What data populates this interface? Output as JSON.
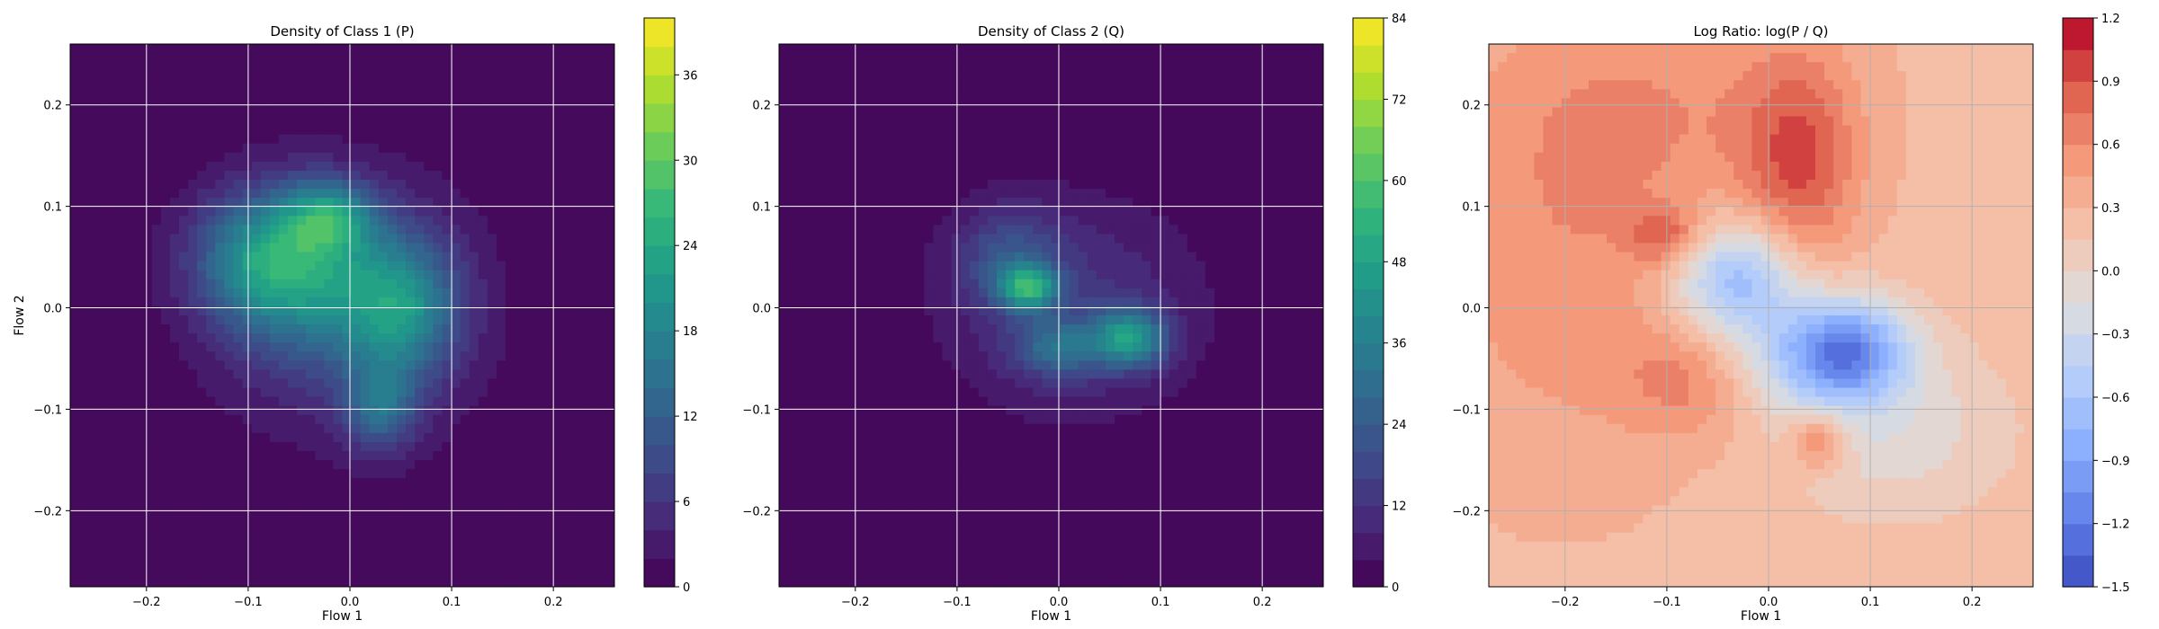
{
  "chart_data": [
    {
      "type": "heatmap",
      "title": "Density of Class 1 (P)",
      "xlabel": "Flow 1",
      "ylabel": "Flow 2",
      "xlim": [
        -0.275,
        0.26
      ],
      "ylim": [
        -0.275,
        0.26
      ],
      "x_ticks": [
        -0.2,
        -0.1,
        0.0,
        0.1,
        0.2
      ],
      "x_tick_labels": [
        "−0.2",
        "−0.1",
        "0.0",
        "0.1",
        "0.2"
      ],
      "y_ticks": [
        -0.2,
        -0.1,
        0.0,
        0.1,
        0.2
      ],
      "y_tick_labels": [
        "−0.2",
        "−0.1",
        "0.0",
        "0.1",
        "0.2"
      ],
      "grid": true,
      "grid_color": "#ffffff",
      "colormap": "viridis",
      "colorbar": {
        "min": 0,
        "max": 40,
        "ticks": [
          0,
          6,
          12,
          18,
          24,
          30,
          36
        ],
        "tick_labels": [
          "0",
          "6",
          "12",
          "18",
          "24",
          "30",
          "36"
        ],
        "levels": 20
      },
      "density_blobs": [
        {
          "x": -0.08,
          "y": 0.05,
          "sx": 0.05,
          "sy": 0.045,
          "v": 16
        },
        {
          "x": -0.02,
          "y": 0.09,
          "sx": 0.03,
          "sy": 0.025,
          "v": 14
        },
        {
          "x": 0.05,
          "y": 0.0,
          "sx": 0.04,
          "sy": 0.05,
          "v": 16
        },
        {
          "x": 0.03,
          "y": -0.1,
          "sx": 0.025,
          "sy": 0.03,
          "v": 11
        },
        {
          "x": -0.04,
          "y": 0.02,
          "sx": 0.06,
          "sy": 0.06,
          "v": 9
        },
        {
          "x": 0.0,
          "y": 0.0,
          "sx": 0.1,
          "sy": 0.1,
          "v": 5
        }
      ]
    },
    {
      "type": "heatmap",
      "title": "Density of Class 2 (Q)",
      "xlabel": "Flow 1",
      "ylabel": "",
      "xlim": [
        -0.275,
        0.26
      ],
      "ylim": [
        -0.275,
        0.26
      ],
      "x_ticks": [
        -0.2,
        -0.1,
        0.0,
        0.1,
        0.2
      ],
      "x_tick_labels": [
        "−0.2",
        "−0.1",
        "0.0",
        "0.1",
        "0.2"
      ],
      "y_ticks": [
        -0.2,
        -0.1,
        0.0,
        0.1,
        0.2
      ],
      "y_tick_labels": [
        "−0.2",
        "−0.1",
        "0.0",
        "0.1",
        "0.2"
      ],
      "grid": true,
      "grid_color": "#ffffff",
      "colormap": "viridis",
      "colorbar": {
        "min": 0,
        "max": 84,
        "ticks": [
          0,
          12,
          24,
          36,
          48,
          60,
          72,
          84
        ],
        "tick_labels": [
          "0",
          "12",
          "24",
          "36",
          "48",
          "60",
          "72",
          "84"
        ],
        "levels": 21
      },
      "density_blobs": [
        {
          "x": -0.03,
          "y": 0.02,
          "sx": 0.02,
          "sy": 0.015,
          "v": 40
        },
        {
          "x": 0.07,
          "y": -0.03,
          "sx": 0.025,
          "sy": 0.02,
          "v": 38
        },
        {
          "x": 0.0,
          "y": -0.04,
          "sx": 0.03,
          "sy": 0.02,
          "v": 22
        },
        {
          "x": -0.05,
          "y": 0.05,
          "sx": 0.035,
          "sy": 0.035,
          "v": 16
        },
        {
          "x": 0.02,
          "y": 0.0,
          "sx": 0.08,
          "sy": 0.07,
          "v": 9
        },
        {
          "x": 0.0,
          "y": 0.0,
          "sx": 0.11,
          "sy": 0.09,
          "v": 4
        }
      ]
    },
    {
      "type": "heatmap",
      "title": "Log Ratio: log(P / Q)",
      "xlabel": "Flow 1",
      "ylabel": "",
      "xlim": [
        -0.275,
        0.26
      ],
      "ylim": [
        -0.275,
        0.26
      ],
      "x_ticks": [
        -0.2,
        -0.1,
        0.0,
        0.1,
        0.2
      ],
      "x_tick_labels": [
        "−0.2",
        "−0.1",
        "0.0",
        "0.1",
        "0.2"
      ],
      "y_ticks": [
        -0.2,
        -0.1,
        0.0,
        0.1,
        0.2
      ],
      "y_tick_labels": [
        "−0.2",
        "−0.1",
        "0.0",
        "0.1",
        "0.2"
      ],
      "grid": true,
      "grid_color": "#b0b0b0",
      "colormap": "coolwarm",
      "colorbar": {
        "min": -1.5,
        "max": 1.2,
        "ticks": [
          -1.5,
          -1.2,
          -0.9,
          -0.6,
          -0.3,
          0.0,
          0.3,
          0.6,
          0.9,
          1.2
        ],
        "tick_labels": [
          "−1.5",
          "−1.2",
          "−0.9",
          "−0.6",
          "−0.3",
          "0.0",
          "0.3",
          "0.6",
          "0.9",
          "1.2"
        ],
        "levels": 18
      },
      "ratio_terms": [
        {
          "x": -0.03,
          "y": 0.03,
          "sx": 0.045,
          "sy": 0.04,
          "v": -1.0
        },
        {
          "x": 0.08,
          "y": -0.04,
          "sx": 0.04,
          "sy": 0.035,
          "v": -1.0
        },
        {
          "x": 0.03,
          "y": -0.05,
          "sx": 0.06,
          "sy": 0.04,
          "v": -0.6
        },
        {
          "x": 0.12,
          "y": -0.12,
          "sx": 0.08,
          "sy": 0.06,
          "v": -0.35
        },
        {
          "x": 0.03,
          "y": 0.14,
          "sx": 0.04,
          "sy": 0.08,
          "v": 0.6
        },
        {
          "x": -0.1,
          "y": 0.07,
          "sx": 0.025,
          "sy": 0.02,
          "v": 0.5
        },
        {
          "x": -0.07,
          "y": -0.07,
          "sx": 0.05,
          "sy": 0.04,
          "v": 0.4
        },
        {
          "x": 0.05,
          "y": -0.13,
          "sx": 0.02,
          "sy": 0.02,
          "v": 0.6
        },
        {
          "x": -0.2,
          "y": 0.05,
          "sx": 0.1,
          "sy": 0.15,
          "v": 0.3
        },
        {
          "x": -0.1,
          "y": 0.2,
          "sx": 0.12,
          "sy": 0.08,
          "v": 0.25
        }
      ],
      "ratio_base": 0.25
    }
  ]
}
